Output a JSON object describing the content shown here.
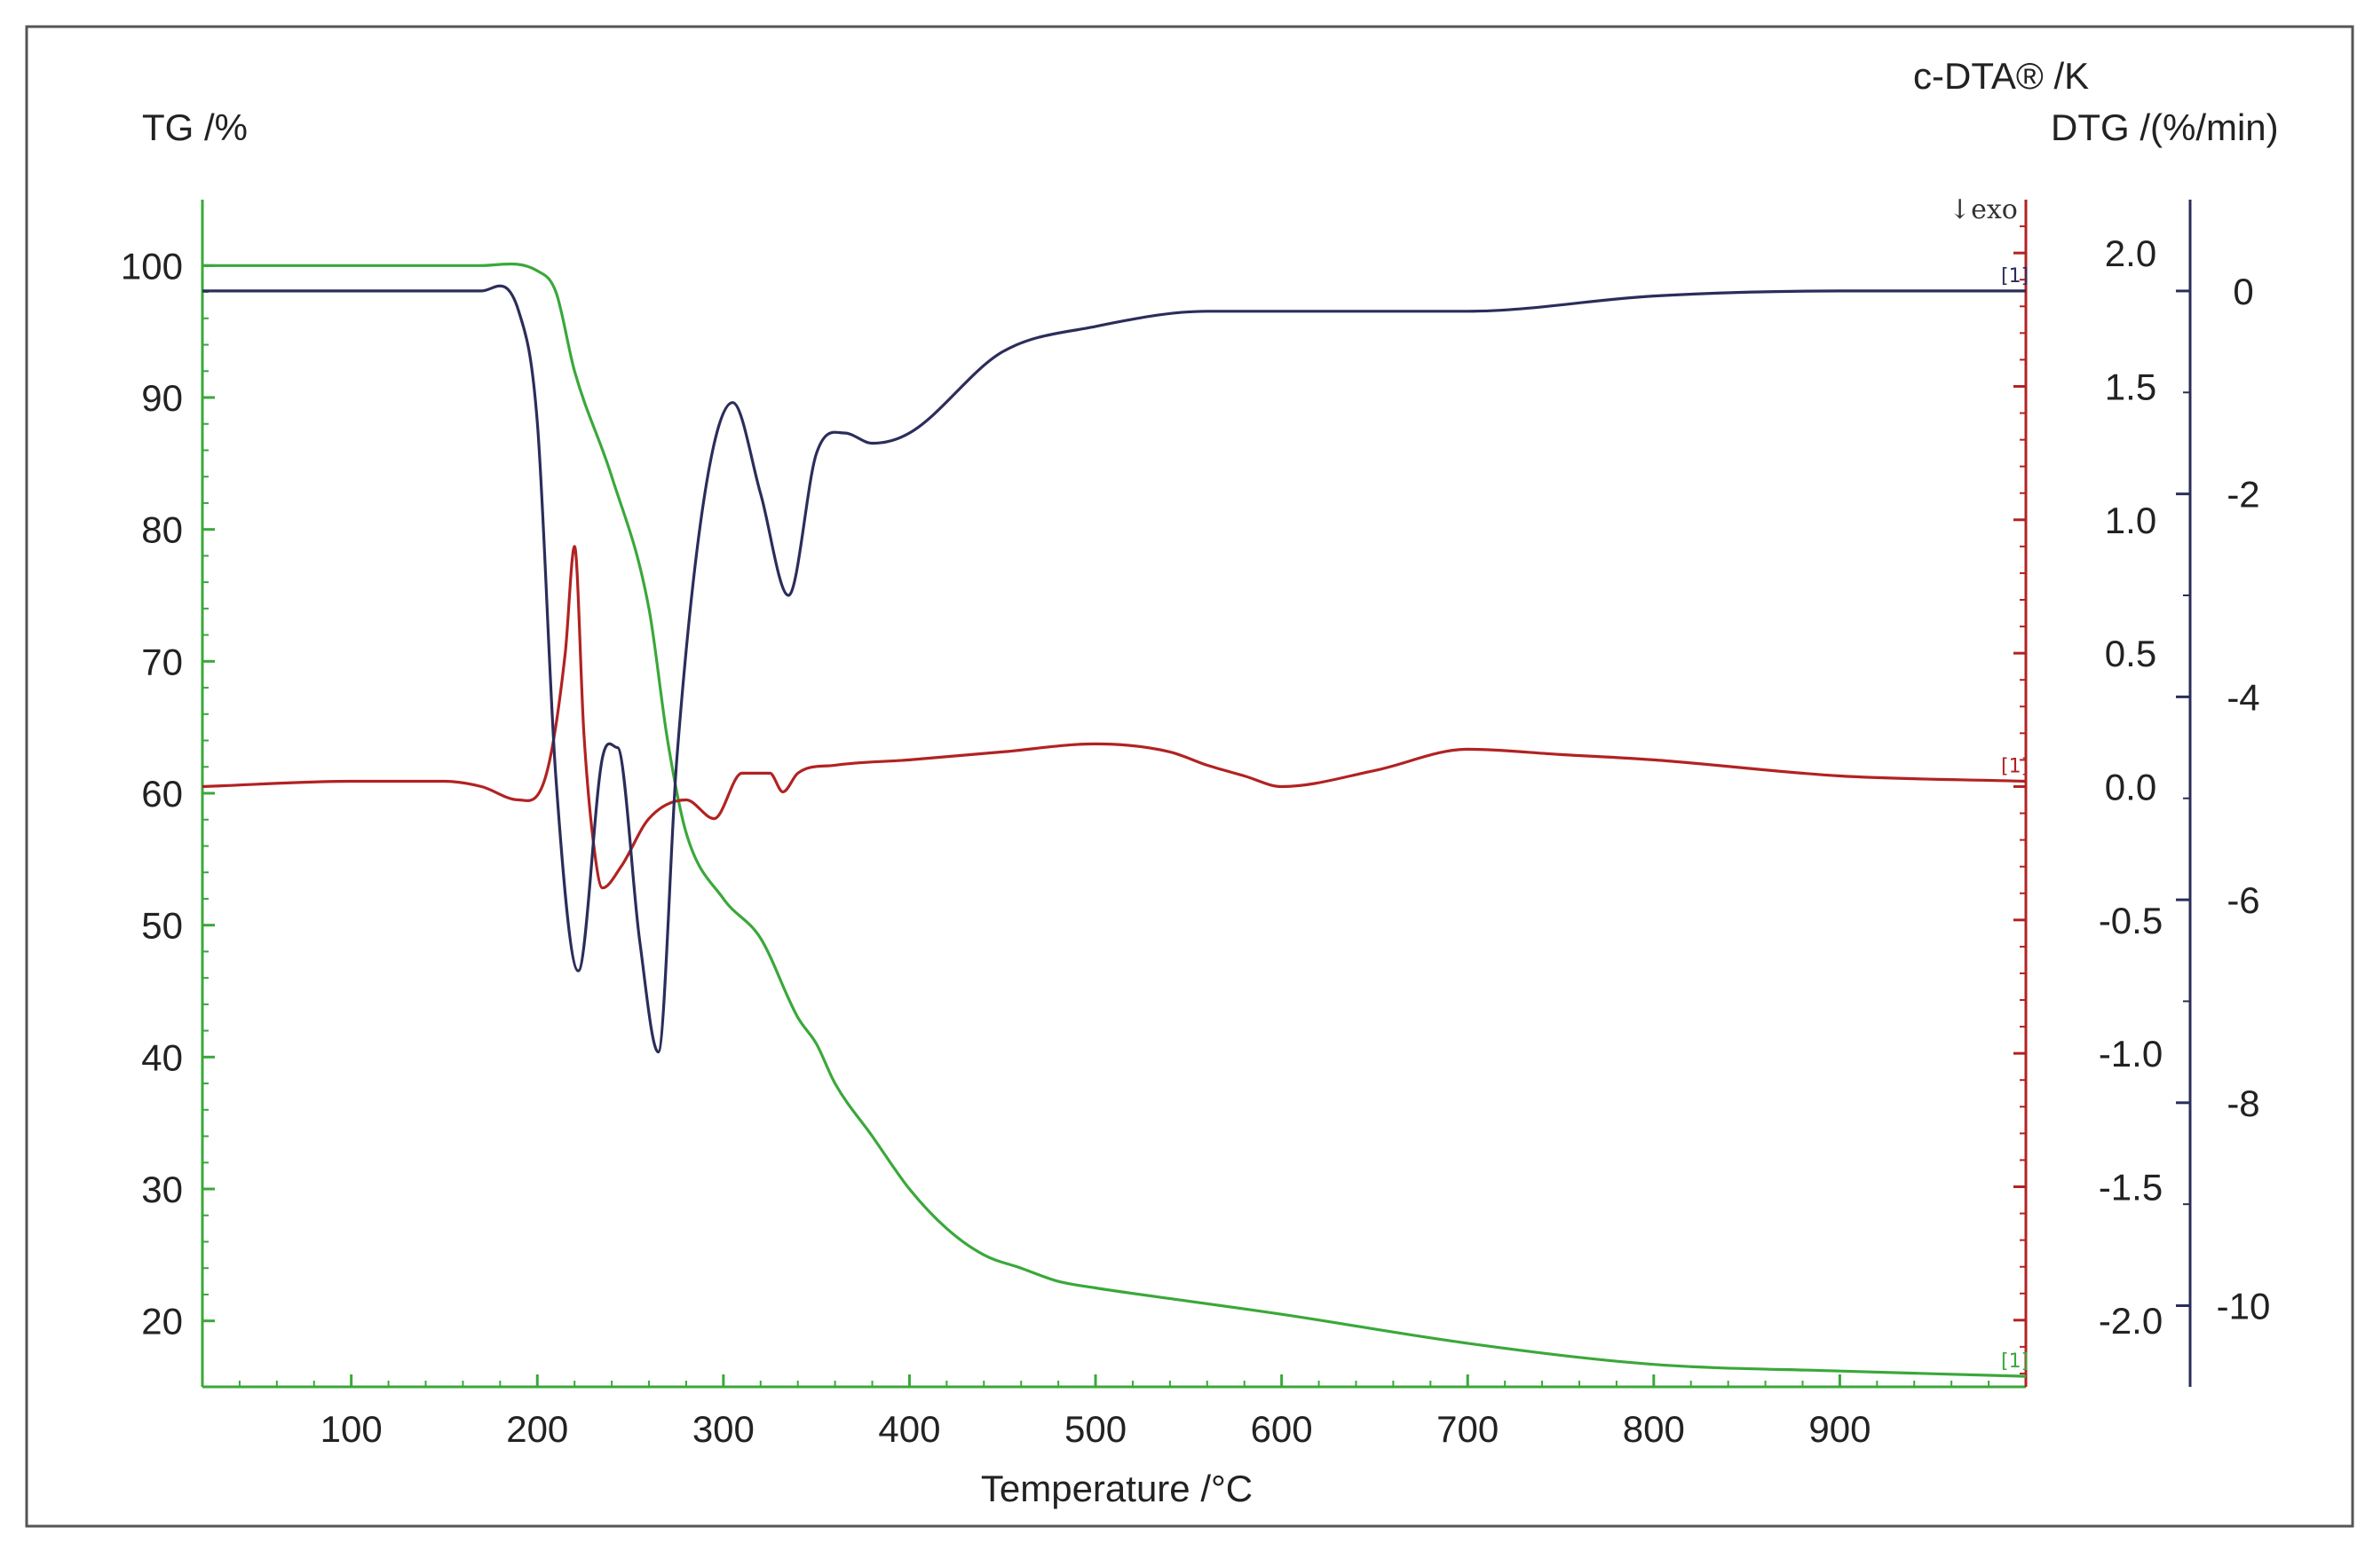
{
  "chart_data": {
    "type": "line",
    "xlabel": "Temperature /°C",
    "x_ticks": [
      100,
      200,
      300,
      400,
      500,
      600,
      700,
      800,
      900
    ],
    "xlim": [
      20,
      1000
    ],
    "axes": {
      "tg": {
        "label": "TG /%",
        "ticks": [
          100,
          90,
          80,
          70,
          60,
          50,
          40,
          30,
          20
        ],
        "ylim": [
          15,
          105
        ],
        "color": "#3aa83a"
      },
      "dta": {
        "label": "c-DTA® /K",
        "ticks": [
          "2.0",
          "1.5",
          "1.0",
          "0.5",
          "0.0",
          "-0.5",
          "-1.0",
          "-1.5",
          "-2.0"
        ],
        "ylim": [
          -2.25,
          2.2
        ],
        "color": "#b22222",
        "annotation": "↓exo"
      },
      "dtg": {
        "label": "DTG /(%/min)",
        "ticks": [
          "0",
          "-2",
          "-4",
          "-6",
          "-8",
          "-10"
        ],
        "ylim": [
          -10.8,
          0.9
        ],
        "color": "#2b2d5a"
      }
    },
    "series_marker": "[1]",
    "series": [
      {
        "axis": "tg",
        "color": "#3aa83a",
        "x": [
          20,
          100,
          170,
          200,
          210,
          220,
          240,
          260,
          270,
          280,
          300,
          320,
          340,
          350,
          360,
          380,
          400,
          420,
          440,
          460,
          480,
          500,
          550,
          600,
          700,
          800,
          900,
          1000
        ],
        "y": [
          100,
          100,
          100,
          99.6,
          98,
          92,
          84,
          74,
          64,
          57,
          52,
          49,
          43,
          41,
          38,
          34,
          30,
          27,
          25,
          24,
          23,
          22.5,
          21.5,
          20.5,
          18.3,
          16.7,
          16.2,
          15.8
        ]
      },
      {
        "axis": "dta",
        "color": "#b22222",
        "x": [
          20,
          100,
          150,
          170,
          190,
          205,
          215,
          220,
          225,
          230,
          235,
          245,
          260,
          280,
          295,
          310,
          325,
          332,
          340,
          360,
          400,
          450,
          500,
          540,
          560,
          580,
          600,
          650,
          700,
          750,
          800,
          900,
          1000
        ],
        "y": [
          0.0,
          0.02,
          0.02,
          0.0,
          -0.05,
          0.05,
          0.5,
          0.9,
          0.2,
          -0.2,
          -0.38,
          -0.3,
          -0.12,
          -0.05,
          -0.12,
          0.05,
          0.05,
          -0.02,
          0.05,
          0.08,
          0.1,
          0.13,
          0.16,
          0.13,
          0.08,
          0.04,
          0.0,
          0.06,
          0.14,
          0.12,
          0.1,
          0.04,
          0.02
        ]
      },
      {
        "axis": "dtg",
        "color": "#2b2d5a",
        "x": [
          20,
          100,
          170,
          190,
          200,
          210,
          222,
          235,
          243,
          255,
          265,
          275,
          290,
          305,
          320,
          335,
          350,
          365,
          380,
          400,
          450,
          500,
          560,
          600,
          700,
          800,
          900,
          1000
        ],
        "y": [
          0.0,
          0.0,
          0.0,
          -0.2,
          -1.3,
          -4.8,
          -6.7,
          -4.6,
          -4.5,
          -6.4,
          -7.5,
          -4.6,
          -2.0,
          -1.1,
          -2.0,
          -3.0,
          -1.6,
          -1.4,
          -1.5,
          -1.4,
          -0.6,
          -0.35,
          -0.2,
          -0.2,
          -0.2,
          -0.05,
          0.0,
          0.0
        ]
      }
    ]
  }
}
